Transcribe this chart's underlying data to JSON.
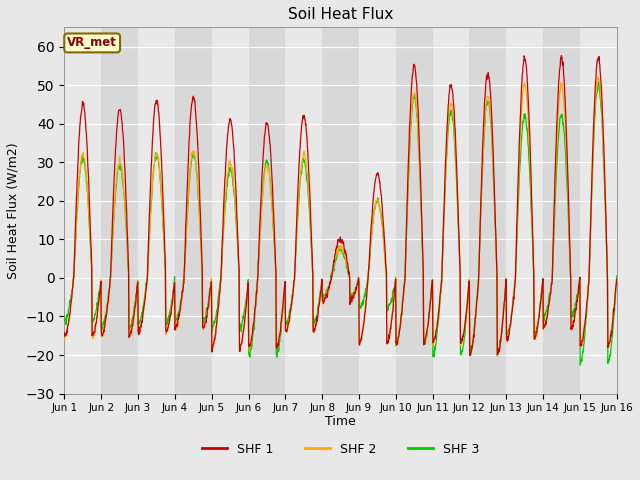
{
  "title": "Soil Heat Flux",
  "ylabel": "Soil Heat Flux (W/m2)",
  "xlabel": "Time",
  "ylim": [
    -30,
    65
  ],
  "background_color": "#e8e8e8",
  "plot_bg_color": "#e0e0e0",
  "line_colors": {
    "SHF1": "#cc0000",
    "SHF2": "#ffaa00",
    "SHF3": "#00cc00"
  },
  "legend_label": "VR_met",
  "legend_entries": [
    "SHF 1",
    "SHF 2",
    "SHF 3"
  ],
  "yticks": [
    -30,
    -20,
    -10,
    0,
    10,
    20,
    30,
    40,
    50,
    60
  ],
  "xtick_labels": [
    "Jun 1",
    "Jun 2",
    "Jun 3",
    "Jun 4",
    "Jun 5",
    "Jun 6",
    "Jun 7",
    "Jun 8",
    "Jun 9",
    "Jun 10",
    "Jun 11",
    "Jun 12",
    "Jun 13",
    "Jun 14",
    "Jun 15",
    "Jun 16"
  ],
  "day_peaks_shf1": [
    45,
    44,
    46,
    47,
    41,
    40,
    42,
    10,
    27,
    55,
    50,
    53,
    57,
    57,
    57
  ],
  "day_peaks_shf2": [
    32,
    30,
    32,
    33,
    30,
    29,
    32,
    8,
    20,
    48,
    45,
    47,
    50,
    50,
    52
  ],
  "day_peaks_shf3": [
    31,
    29,
    32,
    32,
    28,
    30,
    30,
    7,
    20,
    47,
    43,
    46,
    42,
    42,
    50
  ],
  "day_nights_shf1": [
    -15,
    -15,
    -14,
    -13,
    -18,
    -18,
    -14,
    -6,
    -17,
    -17,
    -17,
    -20,
    -16,
    -13,
    -18
  ],
  "day_nights_shf2": [
    -15,
    -15,
    -14,
    -13,
    -18,
    -18,
    -14,
    -6,
    -17,
    -17,
    -17,
    -20,
    -16,
    -13,
    -18
  ],
  "day_nights_shf3": [
    -11,
    -13,
    -12,
    -11,
    -13,
    -20,
    -12,
    -5,
    -8,
    -17,
    -20,
    -20,
    -15,
    -10,
    -22
  ]
}
